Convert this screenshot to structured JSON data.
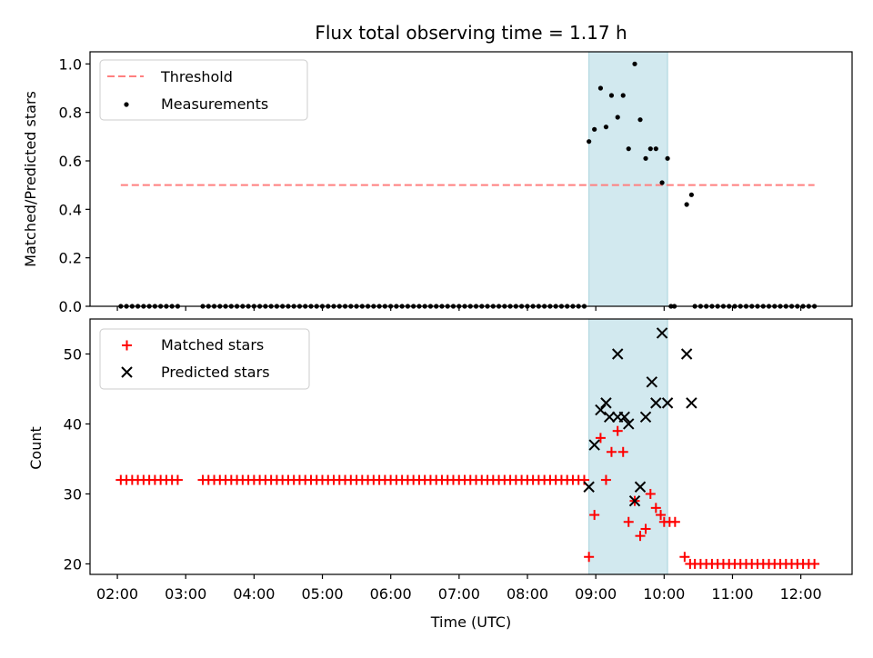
{
  "chart_data": [
    {
      "type": "scatter",
      "panel": "top",
      "title": "Flux total observing time = 1.17 h",
      "xlabel": "",
      "ylabel": "Matched/Predicted stars",
      "ylim": [
        0,
        1.05
      ],
      "yticks": [
        0.0,
        0.2,
        0.4,
        0.6,
        0.8,
        1.0
      ],
      "ytick_labels": [
        "0.0",
        "0.2",
        "0.4",
        "0.6",
        "0.8",
        "1.0"
      ],
      "shaded_span": {
        "x0": 8.9,
        "x1": 10.05,
        "color": "#d2e9ef"
      },
      "threshold": {
        "name": "Threshold",
        "y": 0.5,
        "x0": 2.05,
        "x1": 12.2,
        "color": "#ff7f7f",
        "style": "dashed"
      },
      "series": [
        {
          "name": "Measurements",
          "marker": "dot",
          "color": "#000000",
          "zero_runs": [
            {
              "start": 2.05,
              "end": 2.9,
              "step": 0.0833
            },
            {
              "start": 3.25,
              "end": 8.85,
              "step": 0.0833
            },
            {
              "start": 10.1,
              "end": 10.15,
              "step": 0.05
            },
            {
              "start": 10.45,
              "end": 12.2,
              "step": 0.0833
            }
          ],
          "points": [
            [
              8.9,
              0.68
            ],
            [
              8.98,
              0.73
            ],
            [
              9.07,
              0.9
            ],
            [
              9.15,
              0.74
            ],
            [
              9.23,
              0.87
            ],
            [
              9.32,
              0.78
            ],
            [
              9.4,
              0.87
            ],
            [
              9.48,
              0.65
            ],
            [
              9.57,
              1.0
            ],
            [
              9.65,
              0.77
            ],
            [
              9.73,
              0.61
            ],
            [
              9.8,
              0.65
            ],
            [
              9.88,
              0.65
            ],
            [
              9.97,
              0.51
            ],
            [
              10.05,
              0.61
            ],
            [
              10.33,
              0.42
            ],
            [
              10.4,
              0.46
            ]
          ]
        }
      ],
      "legend": [
        {
          "label": "Threshold",
          "kind": "line"
        },
        {
          "label": "Measurements",
          "kind": "dot"
        }
      ],
      "legend_position": "upper-left"
    },
    {
      "type": "scatter",
      "panel": "bottom",
      "title": "",
      "xlabel": "Time (UTC)",
      "ylabel": "Count",
      "xlim": [
        1.6,
        12.75
      ],
      "ylim": [
        18.5,
        55
      ],
      "yticks": [
        20,
        30,
        40,
        50
      ],
      "ytick_labels": [
        "20",
        "30",
        "40",
        "50"
      ],
      "xticks": [
        2,
        3,
        4,
        5,
        6,
        7,
        8,
        9,
        10,
        11,
        12
      ],
      "xtick_labels": [
        "02:00",
        "03:00",
        "04:00",
        "05:00",
        "06:00",
        "07:00",
        "08:00",
        "09:00",
        "10:00",
        "11:00",
        "12:00"
      ],
      "shaded_span": {
        "x0": 8.9,
        "x1": 10.05,
        "color": "#d2e9ef"
      },
      "series": [
        {
          "name": "Matched stars",
          "marker": "plus",
          "color": "#ff0000",
          "runs": [
            {
              "start": 2.05,
              "end": 2.9,
              "step": 0.0833,
              "value": 32
            },
            {
              "start": 3.25,
              "end": 8.85,
              "step": 0.0833,
              "value": 32
            },
            {
              "start": 10.45,
              "end": 12.2,
              "step": 0.0833,
              "value": 20
            }
          ],
          "points": [
            [
              8.9,
              21
            ],
            [
              8.98,
              27
            ],
            [
              9.07,
              38
            ],
            [
              9.15,
              32
            ],
            [
              9.23,
              36
            ],
            [
              9.32,
              39
            ],
            [
              9.4,
              36
            ],
            [
              9.48,
              26
            ],
            [
              9.57,
              29
            ],
            [
              9.65,
              24
            ],
            [
              9.73,
              25
            ],
            [
              9.8,
              30
            ],
            [
              9.88,
              28
            ],
            [
              9.95,
              27
            ],
            [
              10.0,
              26
            ],
            [
              10.08,
              26
            ],
            [
              10.16,
              26
            ],
            [
              10.3,
              21
            ],
            [
              10.38,
              20
            ]
          ]
        },
        {
          "name": "Predicted stars",
          "marker": "x",
          "color": "#000000",
          "points": [
            [
              8.9,
              31
            ],
            [
              8.98,
              37
            ],
            [
              9.07,
              42
            ],
            [
              9.15,
              43
            ],
            [
              9.2,
              41
            ],
            [
              9.32,
              50
            ],
            [
              9.32,
              41
            ],
            [
              9.42,
              41
            ],
            [
              9.48,
              40
            ],
            [
              9.57,
              29
            ],
            [
              9.65,
              31
            ],
            [
              9.73,
              41
            ],
            [
              9.82,
              46
            ],
            [
              9.88,
              43
            ],
            [
              9.97,
              53
            ],
            [
              10.05,
              43
            ],
            [
              10.33,
              50
            ],
            [
              10.4,
              43
            ]
          ]
        }
      ],
      "legend": [
        {
          "label": "Matched stars",
          "kind": "plus"
        },
        {
          "label": "Predicted stars",
          "kind": "x"
        }
      ],
      "legend_position": "upper-left"
    }
  ]
}
